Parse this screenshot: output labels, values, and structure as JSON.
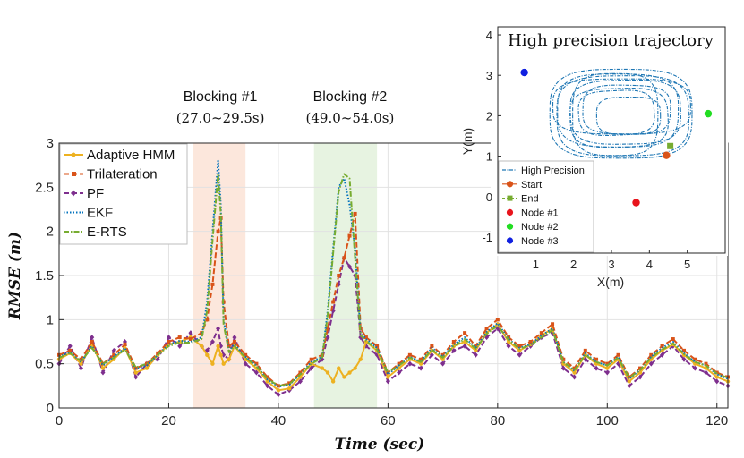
{
  "chart_data": [
    {
      "type": "line",
      "title": "",
      "xlabel": "Time (sec)",
      "ylabel": "RMSE (m)",
      "xlim": [
        0,
        122
      ],
      "ylim": [
        0,
        3
      ],
      "x_ticks": [
        0,
        20,
        40,
        60,
        80,
        100,
        120
      ],
      "y_ticks": [
        0,
        0.5,
        1,
        1.5,
        2,
        2.5,
        3
      ],
      "x_tick_labels": [
        "0",
        "20",
        "40",
        "60",
        "80",
        "100",
        "120"
      ],
      "y_tick_labels": [
        "0",
        "0.5",
        "1",
        "1.5",
        "2",
        "2.5",
        "3"
      ],
      "grid": true,
      "legend_position": "top-left",
      "blocking_regions": [
        {
          "title": "Blocking #1",
          "range_label": "(27.0~29.5s)",
          "start": 24.5,
          "end": 34.0,
          "color": "#fbe3d6"
        },
        {
          "title": "Blocking #2",
          "range_label": "(49.0~54.0s)",
          "start": 46.5,
          "end": 58.0,
          "color": "#e3f1dc"
        }
      ],
      "x": [
        0,
        2,
        4,
        6,
        8,
        10,
        12,
        14,
        16,
        18,
        20,
        22,
        24,
        26,
        27,
        28,
        29,
        29.5,
        30,
        31,
        32,
        34,
        36,
        38,
        40,
        42,
        44,
        46,
        48,
        49,
        50,
        51,
        52,
        53,
        54,
        55,
        56,
        58,
        60,
        62,
        64,
        66,
        68,
        70,
        72,
        74,
        76,
        78,
        80,
        82,
        84,
        86,
        88,
        90,
        92,
        94,
        96,
        98,
        100,
        102,
        104,
        106,
        108,
        110,
        112,
        114,
        116,
        118,
        120,
        122
      ],
      "series": [
        {
          "name": "Adaptive HMM",
          "color": "#edb120",
          "style": "solid",
          "marker": "circle",
          "values": [
            0.55,
            0.62,
            0.5,
            0.72,
            0.45,
            0.55,
            0.68,
            0.4,
            0.45,
            0.6,
            0.72,
            0.75,
            0.8,
            0.7,
            0.6,
            0.5,
            0.7,
            0.6,
            0.5,
            0.55,
            0.7,
            0.55,
            0.45,
            0.3,
            0.2,
            0.22,
            0.35,
            0.5,
            0.45,
            0.4,
            0.3,
            0.45,
            0.35,
            0.4,
            0.45,
            0.55,
            0.75,
            0.65,
            0.35,
            0.45,
            0.55,
            0.5,
            0.65,
            0.55,
            0.7,
            0.75,
            0.65,
            0.85,
            0.95,
            0.75,
            0.65,
            0.72,
            0.82,
            0.9,
            0.5,
            0.4,
            0.6,
            0.5,
            0.45,
            0.55,
            0.3,
            0.4,
            0.55,
            0.65,
            0.72,
            0.6,
            0.5,
            0.45,
            0.35,
            0.3
          ]
        },
        {
          "name": "Trilateration",
          "color": "#d95319",
          "style": "dashed",
          "marker": "square",
          "values": [
            0.6,
            0.65,
            0.55,
            0.75,
            0.5,
            0.6,
            0.72,
            0.45,
            0.5,
            0.62,
            0.75,
            0.8,
            0.78,
            0.85,
            1.0,
            1.4,
            2.0,
            2.15,
            1.2,
            0.7,
            0.75,
            0.6,
            0.5,
            0.35,
            0.25,
            0.28,
            0.4,
            0.55,
            0.6,
            0.9,
            1.2,
            1.5,
            1.7,
            1.95,
            2.2,
            0.9,
            0.8,
            0.7,
            0.4,
            0.5,
            0.6,
            0.55,
            0.7,
            0.6,
            0.75,
            0.85,
            0.7,
            0.9,
            1.0,
            0.8,
            0.7,
            0.75,
            0.85,
            0.95,
            0.55,
            0.45,
            0.65,
            0.55,
            0.5,
            0.6,
            0.35,
            0.45,
            0.6,
            0.7,
            0.78,
            0.65,
            0.55,
            0.5,
            0.4,
            0.35
          ]
        },
        {
          "name": "PF",
          "color": "#7e2f8e",
          "style": "dashed",
          "marker": "diamond",
          "values": [
            0.5,
            0.7,
            0.45,
            0.8,
            0.4,
            0.65,
            0.75,
            0.35,
            0.5,
            0.55,
            0.8,
            0.7,
            0.85,
            0.7,
            0.65,
            0.75,
            0.9,
            0.7,
            0.6,
            0.55,
            0.8,
            0.5,
            0.4,
            0.25,
            0.15,
            0.2,
            0.3,
            0.45,
            0.55,
            0.8,
            1.1,
            1.4,
            1.7,
            1.6,
            1.5,
            0.8,
            0.7,
            0.6,
            0.3,
            0.4,
            0.5,
            0.45,
            0.6,
            0.5,
            0.65,
            0.7,
            0.6,
            0.8,
            0.9,
            0.7,
            0.6,
            0.7,
            0.8,
            0.85,
            0.45,
            0.35,
            0.55,
            0.45,
            0.4,
            0.5,
            0.25,
            0.35,
            0.5,
            0.6,
            0.7,
            0.55,
            0.45,
            0.4,
            0.3,
            0.25
          ]
        },
        {
          "name": "EKF",
          "color": "#0072bd",
          "style": "dotted",
          "marker": "none",
          "values": [
            0.58,
            0.63,
            0.52,
            0.7,
            0.48,
            0.58,
            0.68,
            0.44,
            0.48,
            0.6,
            0.72,
            0.76,
            0.75,
            0.8,
            1.2,
            2.0,
            2.8,
            2.3,
            1.0,
            0.65,
            0.72,
            0.58,
            0.48,
            0.32,
            0.24,
            0.26,
            0.38,
            0.52,
            0.58,
            1.1,
            1.8,
            2.5,
            2.6,
            2.3,
            1.8,
            0.85,
            0.78,
            0.68,
            0.38,
            0.48,
            0.58,
            0.52,
            0.68,
            0.58,
            0.72,
            0.8,
            0.68,
            0.86,
            0.96,
            0.78,
            0.68,
            0.72,
            0.82,
            0.9,
            0.52,
            0.42,
            0.62,
            0.52,
            0.48,
            0.58,
            0.33,
            0.43,
            0.58,
            0.68,
            0.75,
            0.62,
            0.52,
            0.48,
            0.38,
            0.33
          ]
        },
        {
          "name": "E-RTS",
          "color": "#77ac30",
          "style": "dashdot",
          "marker": "none",
          "values": [
            0.57,
            0.62,
            0.53,
            0.68,
            0.5,
            0.57,
            0.66,
            0.46,
            0.5,
            0.6,
            0.7,
            0.74,
            0.74,
            0.78,
            1.1,
            1.9,
            2.65,
            2.2,
            0.95,
            0.63,
            0.7,
            0.57,
            0.47,
            0.33,
            0.25,
            0.27,
            0.38,
            0.5,
            0.57,
            1.05,
            1.75,
            2.45,
            2.65,
            2.6,
            1.7,
            0.82,
            0.76,
            0.66,
            0.4,
            0.48,
            0.57,
            0.52,
            0.66,
            0.57,
            0.7,
            0.78,
            0.67,
            0.84,
            0.93,
            0.77,
            0.67,
            0.71,
            0.8,
            0.88,
            0.52,
            0.43,
            0.6,
            0.52,
            0.48,
            0.57,
            0.34,
            0.43,
            0.57,
            0.66,
            0.73,
            0.61,
            0.52,
            0.48,
            0.39,
            0.34
          ]
        }
      ]
    },
    {
      "type": "scatter",
      "title": "High precision trajectory",
      "xlabel": "X(m)",
      "ylabel": "Y(m)",
      "xlim": [
        0,
        6
      ],
      "ylim": [
        -1.4,
        4.2
      ],
      "x_ticks": [
        1,
        2,
        3,
        4,
        5
      ],
      "y_ticks": [
        -1,
        0,
        1,
        2,
        3,
        4
      ],
      "x_tick_labels": [
        "1",
        "2",
        "3",
        "4",
        "5"
      ],
      "y_tick_labels": [
        "-1",
        "0",
        "1",
        "2",
        "3",
        "4"
      ],
      "legend_position": "bottom-left",
      "trajectory": {
        "name": "High Precision",
        "color": "#1f77b4",
        "center": [
          3.25,
          2.05
        ],
        "x_extent": [
          0.9,
          4.65
        ],
        "y_extent": [
          0.85,
          3.05
        ]
      },
      "points": [
        {
          "name": "Start",
          "x": 4.45,
          "y": 1.02,
          "color": "#d95319",
          "marker": "circle"
        },
        {
          "name": "End",
          "x": 4.55,
          "y": 1.25,
          "color": "#77ac30",
          "marker": "square"
        },
        {
          "name": "Node #1",
          "x": 3.65,
          "y": -0.15,
          "color": "#e8141c",
          "marker": "circle"
        },
        {
          "name": "Node #2",
          "x": 5.55,
          "y": 2.05,
          "color": "#22dd22",
          "marker": "circle"
        },
        {
          "name": "Node #3",
          "x": 0.7,
          "y": 3.07,
          "color": "#1020e0",
          "marker": "circle"
        }
      ]
    }
  ]
}
